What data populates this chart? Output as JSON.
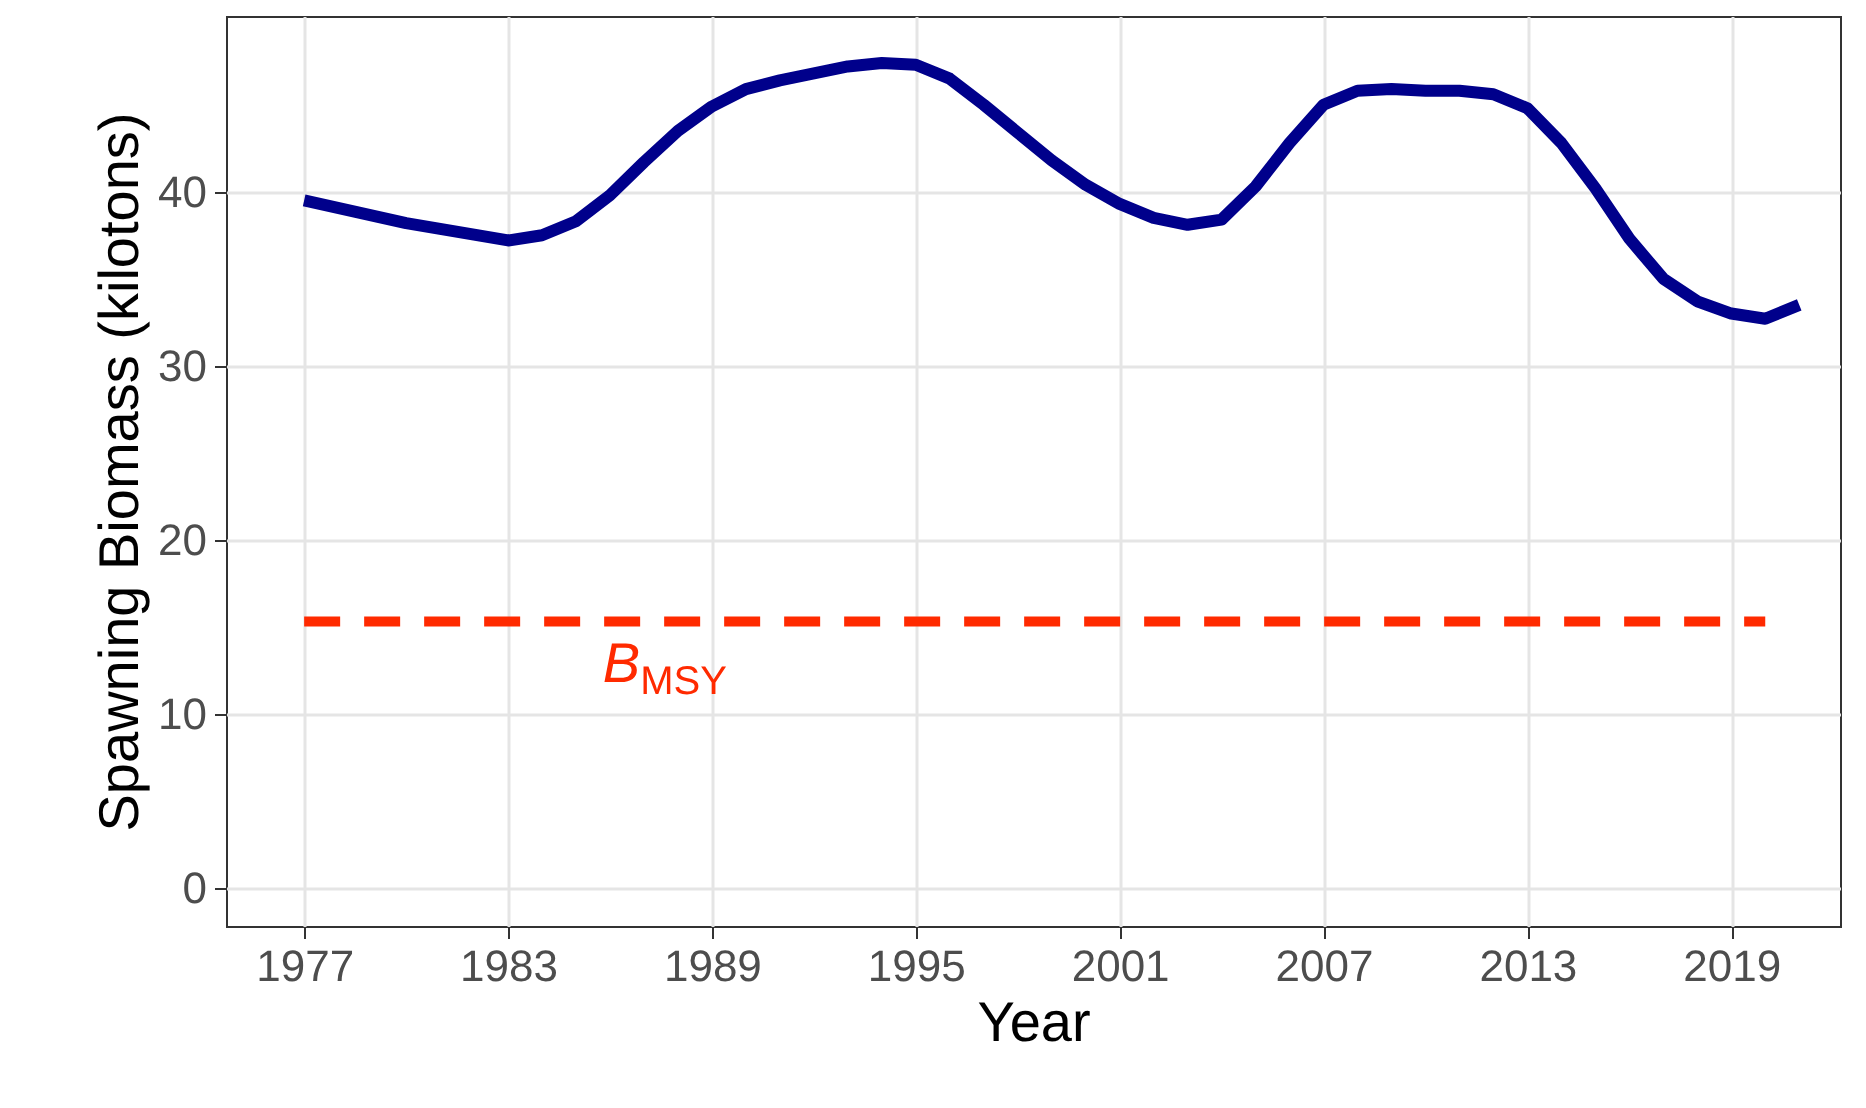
{
  "chart_data": {
    "type": "line",
    "xlabel": "Year",
    "ylabel": "Spawning Biomass (kilotons)",
    "x": [
      1977,
      1980,
      1983,
      1984,
      1985,
      1986,
      1987,
      1988,
      1989,
      1990,
      1991,
      1992,
      1993,
      1994,
      1995,
      1996,
      1997,
      1998,
      1999,
      2000,
      2001,
      2002,
      2003,
      2004,
      2005,
      2006,
      2007,
      2008,
      2009,
      2010,
      2011,
      2012,
      2013,
      2014,
      2015,
      2016,
      2017,
      2018,
      2019,
      2020,
      2021
    ],
    "series": [
      {
        "color": "#00008b",
        "values": [
          39.5,
          38.2,
          37.2,
          37.5,
          38.3,
          39.8,
          41.7,
          43.5,
          44.9,
          45.9,
          46.4,
          46.8,
          47.2,
          47.4,
          47.3,
          46.5,
          45.0,
          43.4,
          41.8,
          40.4,
          39.3,
          38.5,
          38.1,
          38.4,
          40.3,
          42.8,
          45.0,
          45.8,
          45.9,
          45.8,
          45.8,
          45.6,
          44.8,
          42.8,
          40.2,
          37.3,
          35.0,
          33.7,
          33.0,
          32.7,
          33.5
        ]
      }
    ],
    "xlim": [
      1974.7,
      2022.2
    ],
    "xticks": [
      1977,
      1983,
      1989,
      1995,
      2001,
      2007,
      2013,
      2019
    ],
    "ylim": [
      -2.2,
      50.1
    ],
    "yticks": [
      0,
      10,
      20,
      30,
      40
    ],
    "ref_lines": [
      {
        "axis": "y",
        "value": 15.3,
        "label": "B$_{MSY}$",
        "color": "#ff2a00",
        "line_style": "dashed"
      }
    ],
    "grid": true,
    "marker": "none",
    "line_style": "solid"
  }
}
